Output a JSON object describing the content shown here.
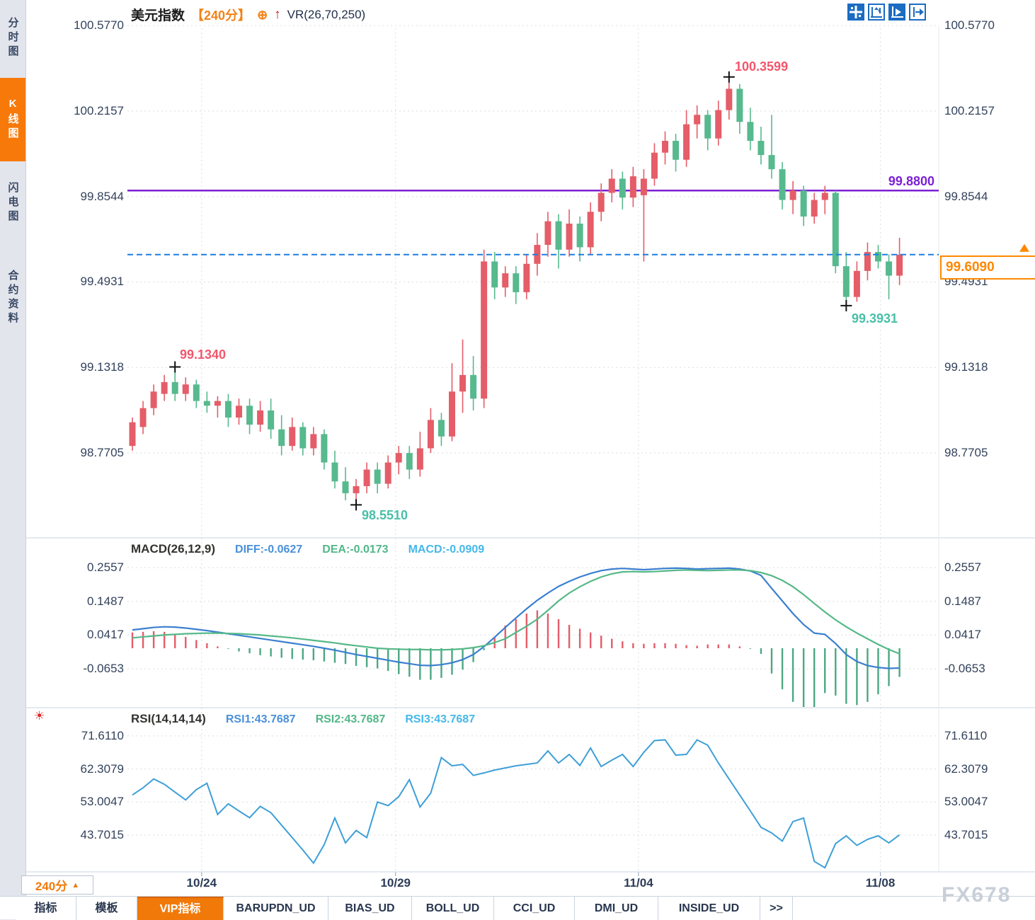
{
  "app": {
    "watermark": "FX678"
  },
  "sidebar": {
    "items": [
      {
        "label": "分时图",
        "active": false
      },
      {
        "label": "K线图",
        "active": true
      },
      {
        "label": "闪电图",
        "active": false
      },
      {
        "label": "合约资料",
        "active": false
      }
    ]
  },
  "header": {
    "title": "美元指数",
    "period_tag": "【240分】",
    "add_icon": "⊕",
    "arrow_icon": "↑",
    "overlay_indicator": "VR(26,70,250)"
  },
  "toolbar": {
    "icons": [
      {
        "name": "crosshair-tool",
        "active": true
      },
      {
        "name": "axis-range-tool",
        "active": false
      },
      {
        "name": "playback-tool",
        "active": true
      },
      {
        "name": "shift-right-tool",
        "active": false
      }
    ]
  },
  "period_selector": {
    "label": "240分",
    "arrow": "▲"
  },
  "bottom_tabs": [
    {
      "label": "指标",
      "active": false
    },
    {
      "label": "模板",
      "active": false
    },
    {
      "label": "VIP指标",
      "active": true
    },
    {
      "label": "BARUPDN_UD",
      "active": false
    },
    {
      "label": "BIAS_UD",
      "active": false
    },
    {
      "label": "BOLL_UD",
      "active": false
    },
    {
      "label": "CCI_UD",
      "active": false
    },
    {
      "label": "DMI_UD",
      "active": false
    },
    {
      "label": "INSIDE_UD",
      "active": false
    },
    {
      "label": ">>",
      "active": false
    }
  ],
  "chart_data": [
    {
      "type": "candlestick",
      "symbol": "美元指数",
      "period": "240分",
      "up_color": "#e45d68",
      "down_color": "#57b98e",
      "y_ticks": [
        {
          "label": "100.5770",
          "value": 100.577
        },
        {
          "label": "100.2157",
          "value": 100.2157
        },
        {
          "label": "99.8544",
          "value": 99.8544
        },
        {
          "label": "99.4931",
          "value": 99.4931
        },
        {
          "label": "99.1318",
          "value": 99.1318
        },
        {
          "label": "98.7705",
          "value": 98.7705
        }
      ],
      "x_dates": [
        {
          "label": "10/24",
          "index": 6.5
        },
        {
          "label": "10/29",
          "index": 24.7
        },
        {
          "label": "11/04",
          "index": 47.5
        },
        {
          "label": "11/08",
          "index": 70.2
        }
      ],
      "current_price": {
        "label": "99.6090",
        "value": 99.609
      },
      "hline": {
        "label": "99.8800",
        "value": 99.88,
        "color": "#7d20d4"
      },
      "annotations": [
        {
          "kind": "high",
          "index": 4,
          "price": 99.134,
          "label": "99.1340"
        },
        {
          "kind": "low",
          "index": 21,
          "price": 98.551,
          "label": "98.5510"
        },
        {
          "kind": "high",
          "index": 56,
          "price": 100.3599,
          "label": "100.3599"
        },
        {
          "kind": "low",
          "index": 67,
          "price": 99.3931,
          "label": "99.3931"
        }
      ],
      "ohlc": [
        [
          98.8,
          98.92,
          98.78,
          98.9
        ],
        [
          98.88,
          98.99,
          98.85,
          98.96
        ],
        [
          98.96,
          99.06,
          98.93,
          99.03
        ],
        [
          99.02,
          99.1,
          98.99,
          99.07
        ],
        [
          99.07,
          99.134,
          98.99,
          99.02
        ],
        [
          99.02,
          99.09,
          98.99,
          99.06
        ],
        [
          99.06,
          99.08,
          98.96,
          98.99
        ],
        [
          98.99,
          99.03,
          98.94,
          98.97
        ],
        [
          98.97,
          99.01,
          98.92,
          98.99
        ],
        [
          98.99,
          99.02,
          98.88,
          98.92
        ],
        [
          98.92,
          99.0,
          98.89,
          98.97
        ],
        [
          98.97,
          99.0,
          98.85,
          98.89
        ],
        [
          98.89,
          98.99,
          98.86,
          98.95
        ],
        [
          98.95,
          99.0,
          98.83,
          98.87
        ],
        [
          98.87,
          98.93,
          98.76,
          98.8
        ],
        [
          98.8,
          98.92,
          98.78,
          98.88
        ],
        [
          98.88,
          98.9,
          98.76,
          98.79
        ],
        [
          98.79,
          98.88,
          98.76,
          98.85
        ],
        [
          98.85,
          98.87,
          98.7,
          98.73
        ],
        [
          98.73,
          98.78,
          98.62,
          98.65
        ],
        [
          98.65,
          98.71,
          98.57,
          98.6
        ],
        [
          98.6,
          98.66,
          98.551,
          98.63
        ],
        [
          98.63,
          98.73,
          98.6,
          98.7
        ],
        [
          98.7,
          98.73,
          98.6,
          98.64
        ],
        [
          98.64,
          98.76,
          98.62,
          98.73
        ],
        [
          98.73,
          98.8,
          98.68,
          98.77
        ],
        [
          98.77,
          98.8,
          98.66,
          98.7
        ],
        [
          98.7,
          98.86,
          98.67,
          98.79
        ],
        [
          98.79,
          98.96,
          98.77,
          98.91
        ],
        [
          98.91,
          98.94,
          98.8,
          98.84
        ],
        [
          98.84,
          99.15,
          98.82,
          99.03
        ],
        [
          99.03,
          99.25,
          98.94,
          99.1
        ],
        [
          99.1,
          99.18,
          98.95,
          99.0
        ],
        [
          99.0,
          99.63,
          98.96,
          99.58
        ],
        [
          99.58,
          99.62,
          99.42,
          99.47
        ],
        [
          99.47,
          99.56,
          99.43,
          99.53
        ],
        [
          99.53,
          99.56,
          99.4,
          99.45
        ],
        [
          99.45,
          99.61,
          99.42,
          99.57
        ],
        [
          99.57,
          99.7,
          99.52,
          99.65
        ],
        [
          99.65,
          99.79,
          99.6,
          99.75
        ],
        [
          99.75,
          99.78,
          99.55,
          99.63
        ],
        [
          99.63,
          99.8,
          99.6,
          99.74
        ],
        [
          99.74,
          99.77,
          99.58,
          99.64
        ],
        [
          99.64,
          99.83,
          99.61,
          99.79
        ],
        [
          99.79,
          99.91,
          99.75,
          99.87
        ],
        [
          99.87,
          99.97,
          99.83,
          99.93
        ],
        [
          99.93,
          99.96,
          99.8,
          99.85
        ],
        [
          99.85,
          99.98,
          99.81,
          99.94
        ],
        [
          99.86,
          99.97,
          99.58,
          99.93
        ],
        [
          99.93,
          100.08,
          99.9,
          100.04
        ],
        [
          100.04,
          100.13,
          99.99,
          100.09
        ],
        [
          100.09,
          100.12,
          99.96,
          100.01
        ],
        [
          100.01,
          100.22,
          99.98,
          100.16
        ],
        [
          100.16,
          100.24,
          100.1,
          100.2
        ],
        [
          100.2,
          100.22,
          100.05,
          100.1
        ],
        [
          100.1,
          100.26,
          100.07,
          100.22
        ],
        [
          100.22,
          100.3599,
          100.18,
          100.31
        ],
        [
          100.31,
          100.33,
          100.12,
          100.17
        ],
        [
          100.17,
          100.23,
          100.05,
          100.09
        ],
        [
          100.09,
          100.15,
          99.99,
          100.03
        ],
        [
          100.03,
          100.2,
          99.93,
          99.97
        ],
        [
          99.97,
          100.0,
          99.8,
          99.84
        ],
        [
          99.84,
          99.92,
          99.78,
          99.88
        ],
        [
          99.88,
          99.9,
          99.73,
          99.77
        ],
        [
          99.77,
          99.87,
          99.74,
          99.84
        ],
        [
          99.84,
          99.9,
          99.78,
          99.87
        ],
        [
          99.87,
          99.88,
          99.53,
          99.56
        ],
        [
          99.56,
          99.62,
          99.3931,
          99.43
        ],
        [
          99.43,
          99.58,
          99.41,
          99.54
        ],
        [
          99.54,
          99.66,
          99.5,
          99.62
        ],
        [
          99.62,
          99.65,
          99.55,
          99.58
        ],
        [
          99.58,
          99.61,
          99.42,
          99.52
        ],
        [
          99.52,
          99.68,
          99.48,
          99.609
        ]
      ]
    },
    {
      "type": "macd",
      "title": "MACD(26,12,9)",
      "legend": [
        {
          "label": "DIFF:-0.0627",
          "color": "#4a90d9"
        },
        {
          "label": "DEA:-0.0173",
          "color": "#52b788"
        },
        {
          "label": "MACD:-0.0909",
          "color": "#45b8e8"
        }
      ],
      "histogram_formula": "2*(diff-dea)",
      "y_ticks": [
        {
          "label": "0.2557",
          "value": 0.2557
        },
        {
          "label": "0.1487",
          "value": 0.1487
        },
        {
          "label": "0.0417",
          "value": 0.0417
        },
        {
          "label": "-0.0653",
          "value": -0.0653
        }
      ],
      "diff": [
        0.058,
        0.062,
        0.066,
        0.068,
        0.067,
        0.064,
        0.06,
        0.056,
        0.051,
        0.046,
        0.041,
        0.036,
        0.031,
        0.026,
        0.021,
        0.016,
        0.011,
        0.006,
        0.0,
        -0.006,
        -0.013,
        -0.02,
        -0.026,
        -0.032,
        -0.038,
        -0.044,
        -0.049,
        -0.054,
        -0.055,
        -0.052,
        -0.046,
        -0.036,
        -0.02,
        0.005,
        0.035,
        0.066,
        0.096,
        0.125,
        0.152,
        0.175,
        0.196,
        0.212,
        0.226,
        0.237,
        0.246,
        0.251,
        0.253,
        0.251,
        0.249,
        0.251,
        0.253,
        0.254,
        0.253,
        0.251,
        0.252,
        0.253,
        0.254,
        0.251,
        0.245,
        0.231,
        0.19,
        0.15,
        0.11,
        0.075,
        0.048,
        0.044,
        0.015,
        -0.02,
        -0.042,
        -0.055,
        -0.061,
        -0.064,
        -0.0627
      ],
      "dea": [
        0.033,
        0.036,
        0.039,
        0.042,
        0.044,
        0.046,
        0.047,
        0.048,
        0.048,
        0.047,
        0.046,
        0.044,
        0.042,
        0.039,
        0.036,
        0.033,
        0.029,
        0.025,
        0.021,
        0.017,
        0.012,
        0.008,
        0.004,
        0.0,
        -0.002,
        -0.003,
        -0.004,
        -0.004,
        -0.005,
        -0.005,
        -0.004,
        -0.002,
        0.002,
        0.008,
        0.018,
        0.03,
        0.05,
        0.07,
        0.092,
        0.12,
        0.15,
        0.175,
        0.195,
        0.212,
        0.226,
        0.236,
        0.242,
        0.243,
        0.242,
        0.243,
        0.245,
        0.247,
        0.248,
        0.247,
        0.246,
        0.247,
        0.248,
        0.248,
        0.246,
        0.24,
        0.23,
        0.215,
        0.195,
        0.17,
        0.142,
        0.115,
        0.09,
        0.068,
        0.048,
        0.03,
        0.012,
        -0.004,
        -0.0173
      ]
    },
    {
      "type": "line",
      "title": "RSI(14,14,14)",
      "legend": [
        {
          "label": "RSI1:43.7687",
          "color": "#4a90d9"
        },
        {
          "label": "RSI2:43.7687",
          "color": "#52b788"
        },
        {
          "label": "RSI3:43.7687",
          "color": "#45b8e8"
        }
      ],
      "y_ticks": [
        {
          "label": "71.6110",
          "value": 71.611
        },
        {
          "label": "62.3079",
          "value": 62.3079
        },
        {
          "label": "53.0047",
          "value": 53.0047
        },
        {
          "label": "43.7015",
          "value": 43.7015
        }
      ],
      "values": [
        55.0,
        57.0,
        59.5,
        58.0,
        55.8,
        53.6,
        56.5,
        58.3,
        49.5,
        52.5,
        50.5,
        48.6,
        51.8,
        50.0,
        46.5,
        43.0,
        39.5,
        35.8,
        41.0,
        48.5,
        41.5,
        45.0,
        43.0,
        53.0,
        52.0,
        54.5,
        59.3,
        51.6,
        55.5,
        65.5,
        63.2,
        63.6,
        60.5,
        61.2,
        62.0,
        62.6,
        63.2,
        63.6,
        64.0,
        67.4,
        64.0,
        66.4,
        63.3,
        68.2,
        63.0,
        64.8,
        66.4,
        63.0,
        67.0,
        70.3,
        70.5,
        66.2,
        66.4,
        70.5,
        69.0,
        64.0,
        59.5,
        55.0,
        50.5,
        45.9,
        44.3,
        42.0,
        47.5,
        48.5,
        36.3,
        34.5,
        41.3,
        43.5,
        40.8,
        42.5,
        43.5,
        41.5,
        43.7687
      ]
    }
  ]
}
